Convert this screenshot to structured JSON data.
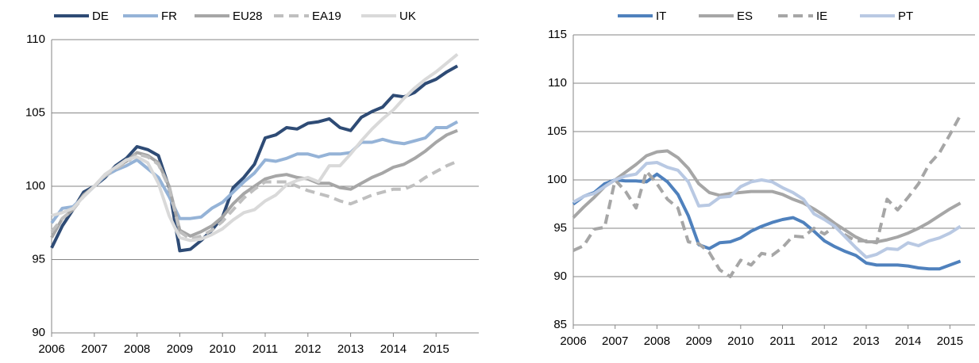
{
  "chart_data": [
    {
      "type": "line",
      "x": [
        2006,
        2006.25,
        2006.5,
        2006.75,
        2007,
        2007.25,
        2007.5,
        2007.75,
        2008,
        2008.25,
        2008.5,
        2008.75,
        2009,
        2009.25,
        2009.5,
        2009.75,
        2010,
        2010.25,
        2010.5,
        2010.75,
        2011,
        2011.25,
        2011.5,
        2011.75,
        2012,
        2012.25,
        2012.5,
        2012.75,
        2013,
        2013.25,
        2013.5,
        2013.75,
        2014,
        2014.25,
        2014.5,
        2014.75,
        2015,
        2015.25,
        2015.5
      ],
      "xlim": [
        2006,
        2016
      ],
      "xticks": [
        2006,
        2007,
        2008,
        2009,
        2010,
        2011,
        2012,
        2013,
        2014,
        2015
      ],
      "ylim": [
        90,
        110
      ],
      "yticks": [
        90,
        95,
        100,
        105,
        110
      ],
      "grid": true,
      "series": [
        {
          "name": "DE",
          "color": "#2e4b75",
          "dashed": false,
          "values": [
            95.8,
            97.3,
            98.4,
            99.6,
            100.0,
            100.6,
            101.4,
            101.9,
            102.7,
            102.5,
            102.1,
            99.9,
            95.6,
            95.7,
            96.3,
            97.0,
            97.9,
            99.9,
            100.6,
            101.5,
            103.3,
            103.5,
            104.0,
            103.9,
            104.3,
            104.4,
            104.6,
            104.0,
            103.8,
            104.7,
            105.1,
            105.4,
            106.2,
            106.1,
            106.4,
            107.0,
            107.3,
            107.8,
            108.2
          ]
        },
        {
          "name": "FR",
          "color": "#95b3d7",
          "dashed": false,
          "values": [
            97.5,
            98.5,
            98.6,
            99.3,
            100.0,
            100.7,
            101.1,
            101.4,
            101.8,
            101.2,
            100.6,
            99.3,
            97.8,
            97.8,
            97.9,
            98.5,
            98.9,
            99.6,
            100.3,
            100.9,
            101.8,
            101.7,
            101.9,
            102.2,
            102.2,
            102.0,
            102.2,
            102.2,
            102.3,
            103.0,
            103.0,
            103.2,
            103.0,
            102.9,
            103.1,
            103.3,
            104.0,
            104.0,
            104.4
          ]
        },
        {
          "name": "EU28",
          "color": "#a6a6a6",
          "dashed": false,
          "values": [
            96.5,
            97.8,
            98.4,
            99.4,
            100.0,
            100.8,
            101.3,
            101.7,
            102.3,
            102.1,
            101.6,
            100.0,
            97.0,
            96.6,
            96.9,
            97.3,
            97.9,
            98.8,
            99.5,
            100.0,
            100.5,
            100.7,
            100.8,
            100.6,
            100.5,
            100.2,
            100.2,
            99.9,
            99.8,
            100.2,
            100.6,
            100.9,
            101.3,
            101.5,
            101.9,
            102.4,
            103.0,
            103.5,
            103.8
          ]
        },
        {
          "name": "EA19",
          "color": "#bfbfbf",
          "dashed": true,
          "values": [
            96.9,
            97.8,
            98.4,
            99.3,
            100.0,
            100.7,
            101.2,
            101.6,
            102.2,
            102.0,
            101.5,
            99.9,
            96.9,
            96.4,
            96.6,
            97.0,
            97.6,
            98.4,
            99.2,
            99.8,
            100.3,
            100.3,
            100.3,
            100.0,
            99.7,
            99.5,
            99.3,
            99.0,
            98.8,
            99.1,
            99.4,
            99.6,
            99.8,
            99.8,
            100.1,
            100.6,
            101.0,
            101.4,
            101.7
          ]
        },
        {
          "name": "UK",
          "color": "#d9d9d9",
          "dashed": false,
          "values": [
            98.0,
            98.2,
            98.5,
            99.3,
            100.0,
            100.8,
            101.3,
            101.8,
            102.0,
            101.6,
            100.2,
            98.0,
            96.5,
            96.3,
            96.4,
            96.7,
            97.1,
            97.7,
            98.2,
            98.4,
            99.0,
            99.4,
            100.1,
            100.4,
            100.6,
            100.3,
            101.4,
            101.4,
            102.2,
            103.1,
            103.9,
            104.6,
            105.2,
            106.0,
            106.7,
            107.3,
            107.8,
            108.4,
            109.0
          ]
        }
      ]
    },
    {
      "type": "line",
      "x": [
        2006,
        2006.25,
        2006.5,
        2006.75,
        2007,
        2007.25,
        2007.5,
        2007.75,
        2008,
        2008.25,
        2008.5,
        2008.75,
        2009,
        2009.25,
        2009.5,
        2009.75,
        2010,
        2010.25,
        2010.5,
        2010.75,
        2011,
        2011.25,
        2011.5,
        2011.75,
        2012,
        2012.25,
        2012.5,
        2012.75,
        2013,
        2013.25,
        2013.5,
        2013.75,
        2014,
        2014.25,
        2014.5,
        2014.75,
        2015,
        2015.25
      ],
      "xlim": [
        2006,
        2015.6
      ],
      "xticks": [
        2006,
        2007,
        2008,
        2009,
        2010,
        2011,
        2012,
        2013,
        2014,
        2015
      ],
      "ylim": [
        85,
        115
      ],
      "yticks": [
        85,
        90,
        95,
        100,
        105,
        110,
        115
      ],
      "grid": true,
      "series": [
        {
          "name": "IT",
          "color": "#4f81bd",
          "dashed": false,
          "values": [
            97.5,
            98.3,
            98.7,
            99.6,
            100.0,
            99.9,
            99.9,
            99.8,
            100.6,
            99.8,
            98.5,
            96.3,
            93.3,
            92.9,
            93.5,
            93.6,
            94.0,
            94.7,
            95.2,
            95.6,
            95.9,
            96.1,
            95.6,
            94.7,
            93.7,
            93.1,
            92.6,
            92.2,
            91.4,
            91.2,
            91.2,
            91.2,
            91.1,
            90.9,
            90.8,
            90.8,
            91.2,
            91.6
          ]
        },
        {
          "name": "ES",
          "color": "#a6a6a6",
          "dashed": false,
          "values": [
            96.1,
            97.2,
            98.2,
            99.3,
            100.0,
            100.8,
            101.6,
            102.5,
            102.9,
            103.0,
            102.3,
            101.2,
            99.6,
            98.7,
            98.4,
            98.6,
            98.7,
            98.8,
            98.8,
            98.8,
            98.5,
            98.0,
            97.6,
            97.0,
            96.3,
            95.5,
            94.8,
            94.1,
            93.6,
            93.6,
            93.8,
            94.1,
            94.5,
            95.0,
            95.6,
            96.3,
            97.0,
            97.6
          ]
        },
        {
          "name": "IE",
          "color": "#a6a6a6",
          "dashed": true,
          "values": [
            92.7,
            93.2,
            94.9,
            95.1,
            100.0,
            98.8,
            97.1,
            100.9,
            99.6,
            98.0,
            97.1,
            93.6,
            93.4,
            92.5,
            90.7,
            90.0,
            91.7,
            91.2,
            92.4,
            92.2,
            93.0,
            94.2,
            94.1,
            95.0,
            94.4,
            95.2,
            94.3,
            93.7,
            93.7,
            93.5,
            98.0,
            96.9,
            98.2,
            99.6,
            101.6,
            102.8,
            104.7,
            106.7
          ]
        },
        {
          "name": "PT",
          "color": "#b9c9e3",
          "dashed": false,
          "values": [
            97.7,
            98.3,
            98.6,
            99.3,
            100.0,
            100.4,
            100.6,
            101.7,
            101.8,
            101.3,
            101.0,
            99.8,
            97.3,
            97.4,
            98.2,
            98.3,
            99.3,
            99.8,
            100.0,
            99.8,
            99.2,
            98.7,
            98.0,
            96.5,
            95.9,
            95.2,
            94.1,
            93.0,
            92.0,
            92.3,
            92.9,
            92.8,
            93.5,
            93.2,
            93.7,
            94.0,
            94.5,
            95.2
          ]
        }
      ]
    }
  ]
}
